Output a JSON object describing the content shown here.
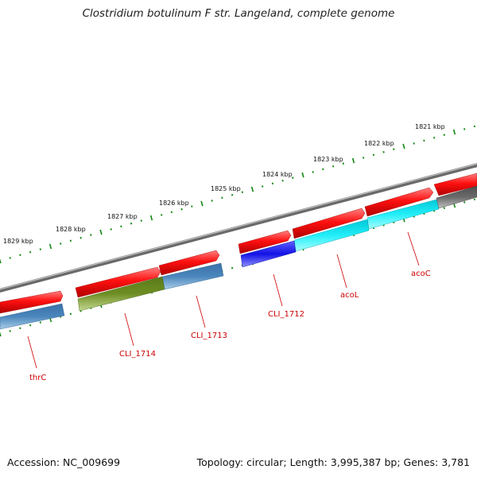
{
  "title": "Clostridium botulinum F str. Langeland, complete genome",
  "footer": {
    "accession": "Accession: NC_009699",
    "topology": "Topology: circular; Length: 3,995,387 bp; Genes: 3,781"
  },
  "kbp_labels": [
    "1821 kbp",
    "1822 kbp",
    "1823 kbp",
    "1824 kbp",
    "1825 kbp",
    "1826 kbp",
    "1827 kbp",
    "1828 kbp",
    "1829 kbp"
  ],
  "gene_labels": [
    "acoC",
    "acoL",
    "CLI_1712",
    "CLI_1713",
    "CLI_1714",
    "thrC"
  ],
  "colors": {
    "forward_cds": "#ee0000",
    "backbone": "#888888",
    "tick": "#118811",
    "label": "#cc0000",
    "blue": "#1a1ae0",
    "cyan": "#22e6f0",
    "steel": "#4a82b8",
    "olive": "#6a8a22",
    "gray_feature": "#666666"
  }
}
